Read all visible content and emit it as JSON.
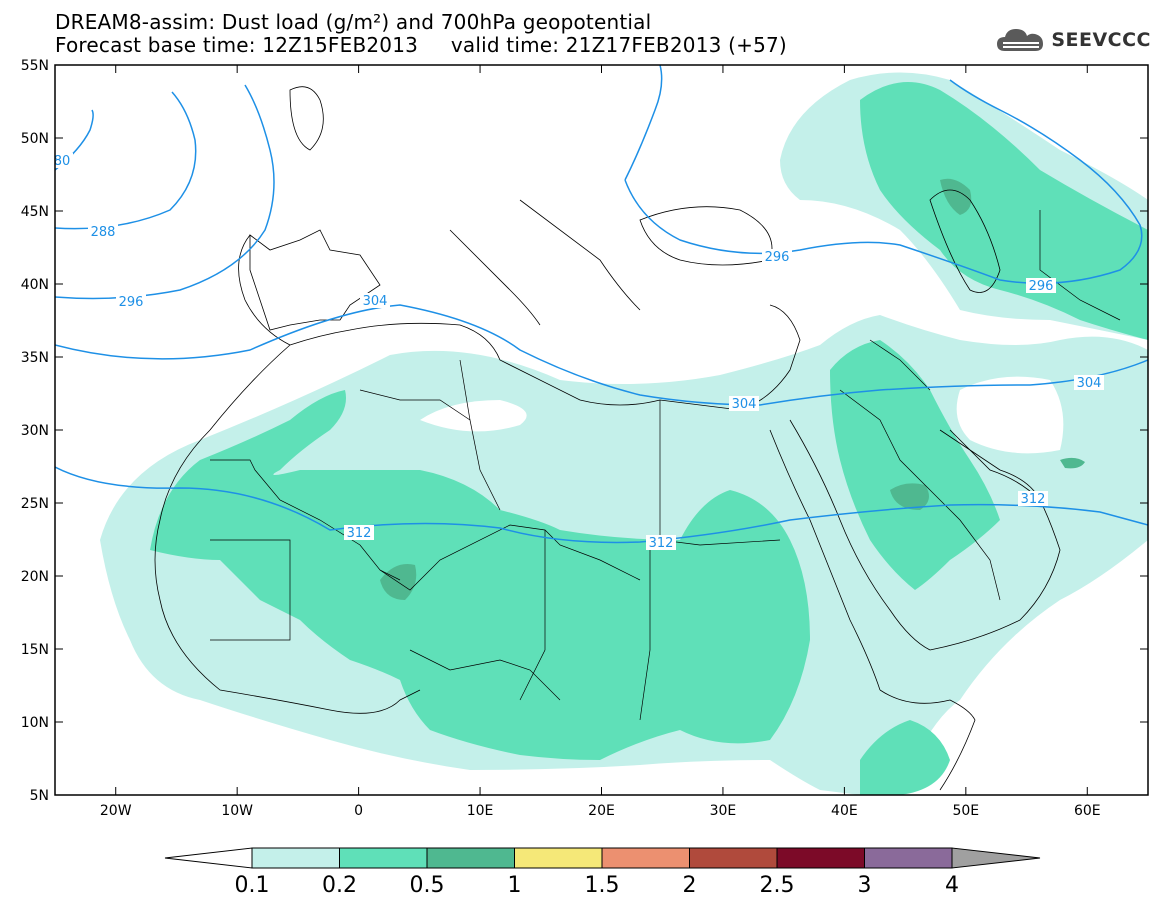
{
  "title": {
    "line1": "DREAM8-assim: Dust load (g/m²) and 700hPa geopotential",
    "line2": "Forecast base time: 12Z15FEB2013     valid time: 21Z17FEB2013 (+57)"
  },
  "logo": {
    "text": "SEEVCCC",
    "icon": "cloud-icon"
  },
  "map": {
    "lon_range": [
      -25,
      65
    ],
    "lat_range": [
      5,
      55
    ],
    "lat_ticks": [
      "55N",
      "50N",
      "45N",
      "40N",
      "35N",
      "30N",
      "25N",
      "20N",
      "15N",
      "10N",
      "5N"
    ],
    "lon_ticks": [
      "20W",
      "10W",
      "0",
      "10E",
      "20E",
      "30E",
      "40E",
      "50E",
      "60E"
    ],
    "contour_color": "#1e90e6",
    "contour_labels": [
      "80",
      "288",
      "296",
      "304",
      "296",
      "296",
      "304",
      "304",
      "312",
      "312",
      "312"
    ]
  },
  "colorbar": {
    "labels": [
      "0.1",
      "0.2",
      "0.5",
      "1",
      "1.5",
      "2",
      "2.5",
      "3",
      "4"
    ],
    "colors": [
      "#c4f0ea",
      "#5fe0b8",
      "#4fb890",
      "#f5e878",
      "#ec9070",
      "#b04a3c",
      "#7c0a28",
      "#8a6a9a"
    ],
    "low_color": "#ffffff",
    "high_color": "#a0a0a0"
  }
}
